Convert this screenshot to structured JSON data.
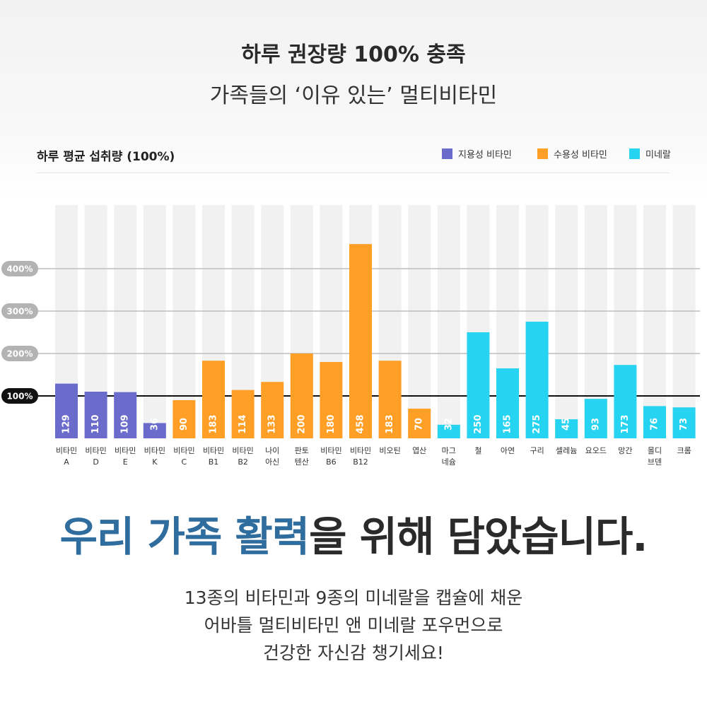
{
  "hero": {
    "title": "하루 권장량 100% 충족",
    "subtitle": "가족들의 ‘이유 있는’ 멀티비타민"
  },
  "legend": [
    {
      "label": "지용성 비타민",
      "color": "#6b6bcc"
    },
    {
      "label": "수용성 비타민",
      "color": "#ff9f26"
    },
    {
      "label": "미네랄",
      "color": "#26d4f2"
    }
  ],
  "headline": {
    "accent": "우리 가족 활력",
    "rest": "을 위해 담았습니다."
  },
  "body": {
    "line1": "13종의 비타민과 9종의 미네랄을 캡슐에 채운",
    "line2": "어바틀 멀티비타민 앤 미네랄 포우먼으로",
    "line3": "건강한 자신감 챙기세요!"
  },
  "chart_data": {
    "type": "bar",
    "title": "하루 평균 섭취량 (100%)",
    "ylim": [
      0,
      500
    ],
    "yticks": [
      {
        "value": 100,
        "label": "100%"
      },
      {
        "value": 200,
        "label": "200%"
      },
      {
        "value": 300,
        "label": "300%"
      },
      {
        "value": 400,
        "label": "400%"
      }
    ],
    "colors": {
      "fat": "#6b6bcc",
      "water": "#ff9f26",
      "mineral": "#26d4f2",
      "track": "#f1f1f1",
      "grid": "#bdbdbd",
      "reference": "#111111"
    },
    "legend_position": "top-right",
    "categories": [
      {
        "label": [
          "비타민",
          "A"
        ],
        "value": 129,
        "group": "fat"
      },
      {
        "label": [
          "비타민",
          "D"
        ],
        "value": 110,
        "group": "fat"
      },
      {
        "label": [
          "비타민",
          "E"
        ],
        "value": 109,
        "group": "fat"
      },
      {
        "label": [
          "비타민",
          "K"
        ],
        "value": 36,
        "group": "fat"
      },
      {
        "label": [
          "비타민",
          "C"
        ],
        "value": 90,
        "group": "water"
      },
      {
        "label": [
          "비타민",
          "B1"
        ],
        "value": 183,
        "group": "water"
      },
      {
        "label": [
          "비타민",
          "B2"
        ],
        "value": 114,
        "group": "water"
      },
      {
        "label": [
          "나이",
          "아신"
        ],
        "value": 133,
        "group": "water"
      },
      {
        "label": [
          "판토",
          "텐산"
        ],
        "value": 200,
        "group": "water"
      },
      {
        "label": [
          "비타민",
          "B6"
        ],
        "value": 180,
        "group": "water"
      },
      {
        "label": [
          "비타민",
          "B12"
        ],
        "value": 458,
        "group": "water"
      },
      {
        "label": [
          "비오틴"
        ],
        "value": 183,
        "group": "water"
      },
      {
        "label": [
          "엽산"
        ],
        "value": 70,
        "group": "water"
      },
      {
        "label": [
          "마그",
          "네슘"
        ],
        "value": 32,
        "group": "mineral"
      },
      {
        "label": [
          "철"
        ],
        "value": 250,
        "group": "mineral"
      },
      {
        "label": [
          "아연"
        ],
        "value": 165,
        "group": "mineral"
      },
      {
        "label": [
          "구리"
        ],
        "value": 275,
        "group": "mineral"
      },
      {
        "label": [
          "셀레늄"
        ],
        "value": 45,
        "group": "mineral"
      },
      {
        "label": [
          "요오드"
        ],
        "value": 93,
        "group": "mineral"
      },
      {
        "label": [
          "망간"
        ],
        "value": 173,
        "group": "mineral"
      },
      {
        "label": [
          "몰디",
          "브덴"
        ],
        "value": 76,
        "group": "mineral"
      },
      {
        "label": [
          "크롬"
        ],
        "value": 73,
        "group": "mineral"
      }
    ]
  }
}
